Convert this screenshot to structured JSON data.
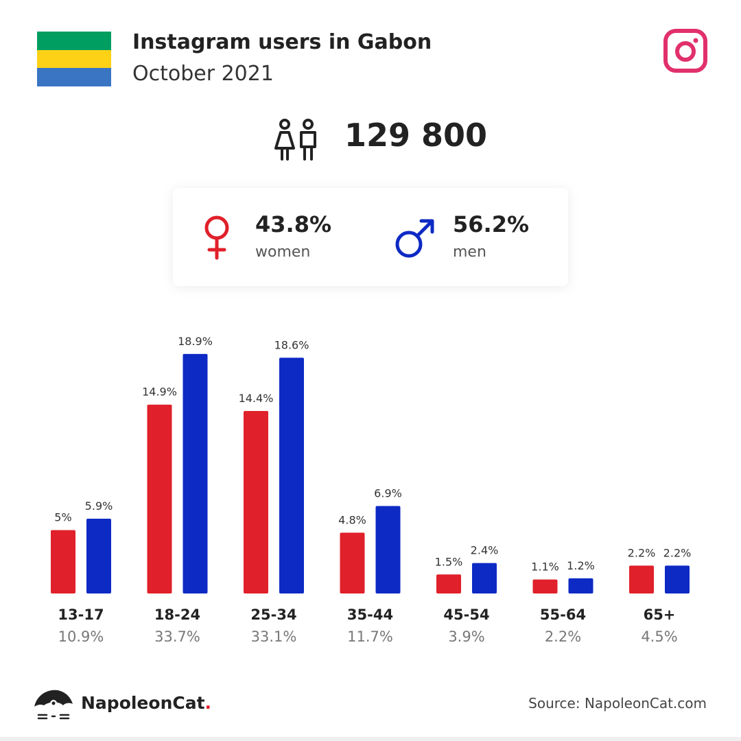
{
  "header": {
    "title": "Instagram users in Gabon",
    "subtitle": "October 2021",
    "flag_colors": [
      "#009e60",
      "#fcd116",
      "#3a75c4"
    ],
    "instagram_color": "#e1306c"
  },
  "summary": {
    "total_users": "129 800",
    "women_pct": "43.8%",
    "women_label": "women",
    "men_pct": "56.2%",
    "men_label": "men",
    "women_color": "#e0202a",
    "men_color": "#0e2ac4"
  },
  "chart_data": {
    "type": "bar",
    "categories": [
      "13-17",
      "18-24",
      "25-34",
      "35-44",
      "45-54",
      "55-64",
      "65+"
    ],
    "category_totals": [
      "10.9%",
      "33.7%",
      "33.1%",
      "11.7%",
      "3.9%",
      "2.2%",
      "4.5%"
    ],
    "series": [
      {
        "values": [
          5,
          14.9,
          14.4,
          4.8,
          1.5,
          1.1,
          2.2
        ],
        "labels": [
          "5%",
          "14.9%",
          "14.4%",
          "4.8%",
          "1.5%",
          "1.1%",
          "2.2%"
        ],
        "color": "#e0202a"
      },
      {
        "values": [
          5.9,
          18.9,
          18.6,
          6.9,
          2.4,
          1.2,
          2.2
        ],
        "labels": [
          "5.9%",
          "18.9%",
          "18.6%",
          "6.9%",
          "2.4%",
          "1.2%",
          "2.2%"
        ],
        "color": "#0e2ac4"
      }
    ],
    "ylim": [
      0,
      19
    ],
    "grid": false
  },
  "footer": {
    "brand": "NapoleonCat",
    "brand_dot": ".",
    "source": "Source: NapoleonCat.com"
  }
}
